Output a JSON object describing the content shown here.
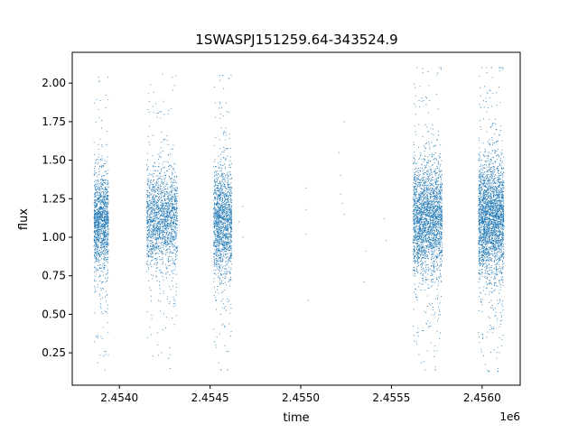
{
  "chart_data": {
    "type": "scatter",
    "title": "1SWASPJ151259.64-343524.9",
    "xlabel": "time",
    "ylabel": "flux",
    "x_offset_label": "1e6",
    "xlim": [
      2.45374,
      2.45621
    ],
    "ylim": [
      0.04,
      2.2
    ],
    "x_ticks": [
      2.454,
      2.4545,
      2.455,
      2.4555,
      2.456
    ],
    "x_tick_labels": [
      "2.4540",
      "2.4545",
      "2.4550",
      "2.4555",
      "2.4560"
    ],
    "y_ticks": [
      0.25,
      0.5,
      0.75,
      1.0,
      1.25,
      1.5,
      1.75,
      2.0
    ],
    "y_tick_labels": [
      "0.25",
      "0.50",
      "0.75",
      "1.00",
      "1.25",
      "1.50",
      "1.75",
      "2.00"
    ],
    "grid": false,
    "legend": "none",
    "marker_color": "#1f77b4",
    "clusters": [
      {
        "x_start": 2.45386,
        "x_end": 2.45394,
        "y_center": 1.1,
        "y_spread": 0.15,
        "n_points": 1300,
        "y_min": 0.14,
        "y_max": 2.04
      },
      {
        "x_start": 2.45415,
        "x_end": 2.45432,
        "y_center": 1.12,
        "y_spread": 0.15,
        "n_points": 1700,
        "y_min": 0.13,
        "y_max": 2.06
      },
      {
        "x_start": 2.45452,
        "x_end": 2.45462,
        "y_center": 1.1,
        "y_spread": 0.17,
        "n_points": 1500,
        "y_min": 0.14,
        "y_max": 2.05
      },
      {
        "x_start": 2.45562,
        "x_end": 2.45578,
        "y_center": 1.12,
        "y_spread": 0.17,
        "n_points": 2400,
        "y_min": 0.14,
        "y_max": 2.1
      },
      {
        "x_start": 2.45598,
        "x_end": 2.45612,
        "y_center": 1.12,
        "y_spread": 0.18,
        "n_points": 2600,
        "y_min": 0.13,
        "y_max": 2.1
      }
    ],
    "isolated_points": [
      {
        "x": 2.45468,
        "y": 1.2
      },
      {
        "x": 2.45468,
        "y": 1.0
      },
      {
        "x": 2.45466,
        "y": 1.1
      },
      {
        "x": 2.45503,
        "y": 1.32
      },
      {
        "x": 2.45503,
        "y": 1.18
      },
      {
        "x": 2.45503,
        "y": 1.02
      },
      {
        "x": 2.45504,
        "y": 0.59
      },
      {
        "x": 2.45521,
        "y": 1.55
      },
      {
        "x": 2.45522,
        "y": 1.4
      },
      {
        "x": 2.45522,
        "y": 1.28
      },
      {
        "x": 2.45523,
        "y": 1.22
      },
      {
        "x": 2.45524,
        "y": 1.15
      },
      {
        "x": 2.45524,
        "y": 1.75
      },
      {
        "x": 2.45536,
        "y": 0.91
      },
      {
        "x": 2.45535,
        "y": 0.71
      },
      {
        "x": 2.45546,
        "y": 1.12
      },
      {
        "x": 2.45547,
        "y": 0.98
      }
    ]
  }
}
